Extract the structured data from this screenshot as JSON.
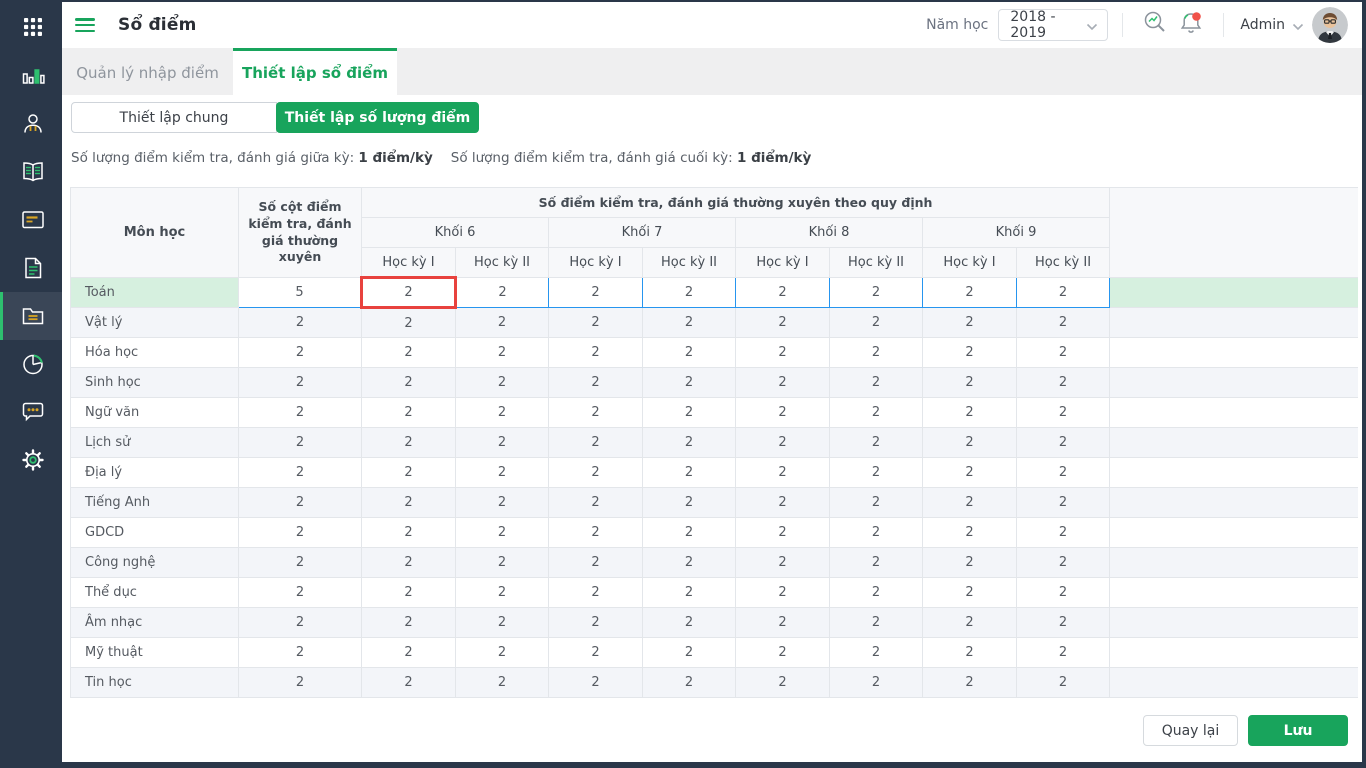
{
  "colors": {
    "accent_green": "#18a45c",
    "sidebar_bg": "#2a3749",
    "highlight_row_green": "#d6f0df",
    "edit_cell_border_blue": "#2695ef",
    "focused_cell_border_red": "#e8423e",
    "notification_badge_red": "#f0524a",
    "icon_accent_green": "#2ec06f",
    "icon_accent_yellow": "#d9a524"
  },
  "sidebar": {
    "items": [
      "grid-menu",
      "bar-chart",
      "teacher",
      "book",
      "presentation-board",
      "document",
      "folder",
      "pie-chart",
      "chat",
      "settings"
    ],
    "active_item": "folder"
  },
  "topbar": {
    "title": "Sổ điểm",
    "year_label": "Năm học",
    "year_value": "2018 - 2019",
    "user_name": "Admin"
  },
  "tabs": [
    {
      "label": "Quản lý nhập điểm",
      "active": false
    },
    {
      "label": "Thiết lập sổ điểm",
      "active": true
    }
  ],
  "segmented": [
    {
      "label": "Thiết lập chung",
      "active": false
    },
    {
      "label": "Thiết lập số lượng điểm",
      "active": true
    }
  ],
  "info": [
    {
      "label": "Số lượng điểm kiểm tra, đánh giá giữa kỳ:",
      "value": "1 điểm/kỳ"
    },
    {
      "label": "Số lượng điểm kiểm tra, đánh giá cuối kỳ:",
      "value": "1 điểm/kỳ"
    }
  ],
  "table": {
    "subject_header": "Môn học",
    "regular_header": "Số cột điểm kiểm tra, đánh giá thường xuyên",
    "group_header": "Số điểm kiểm tra, đánh giá thường xuyên theo quy định",
    "grade_headers": [
      "Khối 6",
      "Khối 7",
      "Khối 8",
      "Khối 9"
    ],
    "semester_headers": [
      "Học kỳ I",
      "Học kỳ II"
    ],
    "highlighted_row_index": 0,
    "focused_cell": {
      "row": 0,
      "score_index": 0
    },
    "rows": [
      {
        "subject": "Toán",
        "regular": "5",
        "scores": [
          "2",
          "2",
          "2",
          "2",
          "2",
          "2",
          "2",
          "2"
        ]
      },
      {
        "subject": "Vật lý",
        "regular": "2",
        "scores": [
          "2",
          "2",
          "2",
          "2",
          "2",
          "2",
          "2",
          "2"
        ]
      },
      {
        "subject": "Hóa học",
        "regular": "2",
        "scores": [
          "2",
          "2",
          "2",
          "2",
          "2",
          "2",
          "2",
          "2"
        ]
      },
      {
        "subject": "Sinh học",
        "regular": "2",
        "scores": [
          "2",
          "2",
          "2",
          "2",
          "2",
          "2",
          "2",
          "2"
        ]
      },
      {
        "subject": "Ngữ văn",
        "regular": "2",
        "scores": [
          "2",
          "2",
          "2",
          "2",
          "2",
          "2",
          "2",
          "2"
        ]
      },
      {
        "subject": "Lịch sử",
        "regular": "2",
        "scores": [
          "2",
          "2",
          "2",
          "2",
          "2",
          "2",
          "2",
          "2"
        ]
      },
      {
        "subject": "Địa lý",
        "regular": "2",
        "scores": [
          "2",
          "2",
          "2",
          "2",
          "2",
          "2",
          "2",
          "2"
        ]
      },
      {
        "subject": "Tiếng Anh",
        "regular": "2",
        "scores": [
          "2",
          "2",
          "2",
          "2",
          "2",
          "2",
          "2",
          "2"
        ]
      },
      {
        "subject": "GDCD",
        "regular": "2",
        "scores": [
          "2",
          "2",
          "2",
          "2",
          "2",
          "2",
          "2",
          "2"
        ]
      },
      {
        "subject": "Công nghệ",
        "regular": "2",
        "scores": [
          "2",
          "2",
          "2",
          "2",
          "2",
          "2",
          "2",
          "2"
        ]
      },
      {
        "subject": "Thể dục",
        "regular": "2",
        "scores": [
          "2",
          "2",
          "2",
          "2",
          "2",
          "2",
          "2",
          "2"
        ]
      },
      {
        "subject": "Âm nhạc",
        "regular": "2",
        "scores": [
          "2",
          "2",
          "2",
          "2",
          "2",
          "2",
          "2",
          "2"
        ]
      },
      {
        "subject": "Mỹ thuật",
        "regular": "2",
        "scores": [
          "2",
          "2",
          "2",
          "2",
          "2",
          "2",
          "2",
          "2"
        ]
      },
      {
        "subject": "Tin học",
        "regular": "2",
        "scores": [
          "2",
          "2",
          "2",
          "2",
          "2",
          "2",
          "2",
          "2"
        ]
      }
    ]
  },
  "footer": {
    "back_label": "Quay lại",
    "save_label": "Lưu"
  }
}
